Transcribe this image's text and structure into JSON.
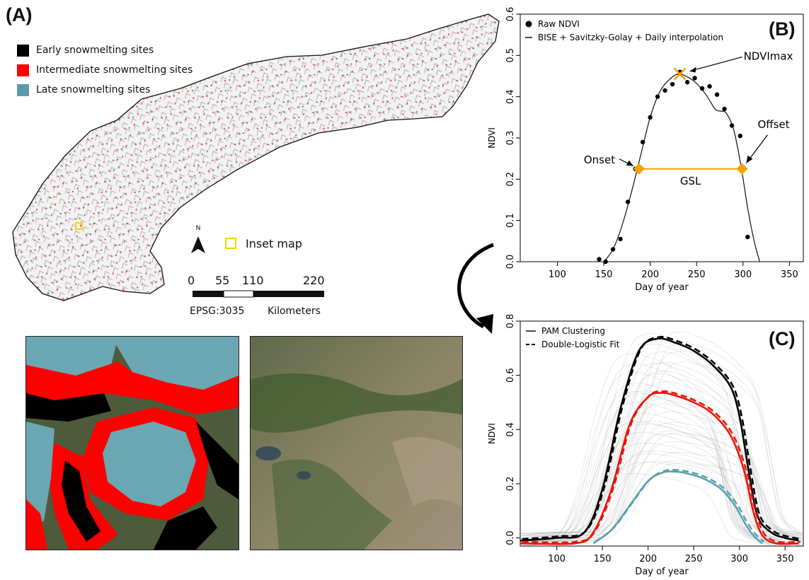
{
  "panelA": {
    "label": "(A)",
    "legend": [
      {
        "label": "Early snowmelting sites",
        "color": "#000000"
      },
      {
        "label": "Intermediate snowmelting sites",
        "color": "#ff0000"
      },
      {
        "label": "Late snowmelting sites",
        "color": "#5b9ba8"
      }
    ],
    "north_label": "N",
    "inset_label": "Inset map",
    "inset_color": "#f2d600",
    "scale_ticks": [
      "0",
      "55",
      "110",
      "220"
    ],
    "crs_label": "EPSG:3035",
    "unit_label": "Kilometers"
  },
  "panelB": {
    "label": "(B)"
  },
  "panelC": {
    "label": "(C)"
  },
  "chart_data": [
    {
      "type": "line",
      "panel": "B",
      "xlabel": "Day of year",
      "ylabel": "NDVI",
      "xlim": [
        60,
        365
      ],
      "ylim": [
        0,
        0.6
      ],
      "xticks": [
        100,
        150,
        200,
        250,
        300,
        350
      ],
      "yticks": [
        0.0,
        0.1,
        0.2,
        0.3,
        0.4,
        0.5,
        0.6
      ],
      "legend": [
        {
          "label": "Raw NDVI",
          "marker": "dot"
        },
        {
          "label": "BISE + Savitzky-Golay + Daily interpolation",
          "marker": "line"
        }
      ],
      "raw_points": {
        "x": [
          145,
          152,
          160,
          168,
          176,
          184,
          192,
          200,
          208,
          216,
          224,
          232,
          240,
          248,
          256,
          264,
          272,
          280,
          288,
          297,
          305
        ],
        "y": [
          0.006,
          0.0,
          0.03,
          0.055,
          0.145,
          0.225,
          0.29,
          0.35,
          0.4,
          0.415,
          0.43,
          0.46,
          0.435,
          0.445,
          0.42,
          0.425,
          0.405,
          0.37,
          0.33,
          0.305,
          0.06
        ]
      },
      "smoothed": {
        "x": [
          150,
          160,
          170,
          180,
          190,
          200,
          210,
          220,
          230,
          240,
          250,
          260,
          270,
          276,
          282,
          290,
          298,
          305,
          312,
          318
        ],
        "y": [
          0.0,
          0.03,
          0.09,
          0.17,
          0.26,
          0.35,
          0.41,
          0.44,
          0.455,
          0.448,
          0.432,
          0.405,
          0.37,
          0.365,
          0.36,
          0.32,
          0.23,
          0.13,
          0.05,
          0.0
        ]
      },
      "ndvimax": {
        "x": 232,
        "y": 0.455,
        "label": "NDVImax"
      },
      "onset": {
        "x": 188,
        "y": 0.225,
        "label": "Onset"
      },
      "offset": {
        "x": 299,
        "y": 0.225,
        "label": "Offset"
      },
      "gsl_label": "GSL",
      "marker_color": "#f5a000"
    },
    {
      "type": "line",
      "panel": "C",
      "xlabel": "Day of year",
      "ylabel": "NDVI",
      "xlim": [
        60,
        370
      ],
      "ylim": [
        -0.03,
        0.8
      ],
      "xticks": [
        100,
        150,
        200,
        250,
        300,
        350
      ],
      "yticks": [
        0.0,
        0.2,
        0.4,
        0.6,
        0.8
      ],
      "legend": [
        {
          "label": "PAM Clustering",
          "style": "solid"
        },
        {
          "label": "Double-Logistic Fit",
          "style": "dashed"
        }
      ],
      "series": [
        {
          "color": "#000000",
          "x": [
            60,
            100,
            130,
            150,
            170,
            190,
            210,
            230,
            250,
            270,
            290,
            300,
            310,
            320,
            335,
            350,
            365
          ],
          "y": [
            -0.01,
            0.0,
            0.02,
            0.18,
            0.48,
            0.69,
            0.735,
            0.72,
            0.69,
            0.64,
            0.56,
            0.45,
            0.25,
            0.08,
            0.02,
            0.0,
            -0.01
          ]
        },
        {
          "color": "#e8170c",
          "x": [
            60,
            120,
            140,
            160,
            180,
            200,
            215,
            230,
            250,
            270,
            290,
            305,
            315,
            325,
            340,
            365
          ],
          "y": [
            -0.02,
            -0.02,
            0.02,
            0.18,
            0.42,
            0.52,
            0.535,
            0.525,
            0.5,
            0.46,
            0.38,
            0.25,
            0.1,
            0.01,
            -0.02,
            -0.02
          ]
        },
        {
          "color": "#5aa3ad",
          "x": [
            140,
            160,
            180,
            200,
            215,
            225,
            240,
            260,
            280,
            295,
            305,
            315,
            325
          ],
          "y": [
            -0.02,
            0.03,
            0.12,
            0.21,
            0.24,
            0.245,
            0.24,
            0.22,
            0.18,
            0.12,
            0.06,
            0.01,
            -0.02
          ]
        }
      ]
    }
  ]
}
